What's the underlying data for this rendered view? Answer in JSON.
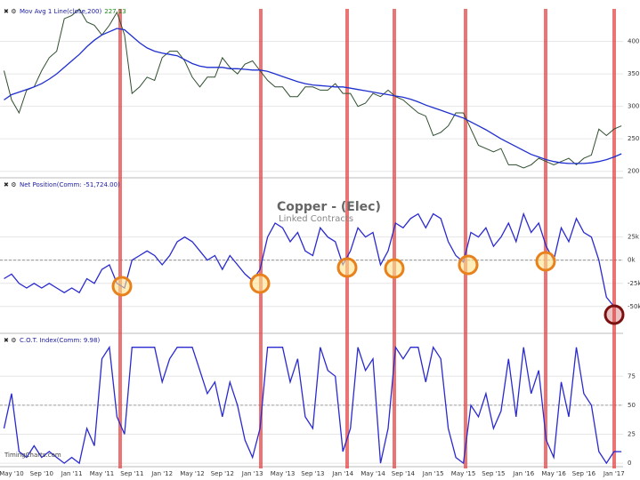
{
  "watermark": "TimingCharts.com",
  "chart_data": [
    {
      "type": "line",
      "legend": "Mov Avg 1 Line(close,200)",
      "legend_value": "227.13",
      "series": [
        {
          "name": "Copper",
          "color": "#2f4f2f",
          "values": [
            355,
            310,
            290,
            325,
            330,
            355,
            375,
            385,
            435,
            440,
            450,
            430,
            425,
            410,
            425,
            445,
            410,
            320,
            330,
            345,
            340,
            375,
            385,
            385,
            370,
            345,
            330,
            345,
            345,
            375,
            360,
            350,
            365,
            370,
            355,
            340,
            330,
            330,
            315,
            315,
            330,
            330,
            325,
            325,
            335,
            320,
            320,
            300,
            305,
            320,
            315,
            325,
            315,
            310,
            300,
            290,
            285,
            255,
            260,
            270,
            290,
            290,
            265,
            240,
            235,
            230,
            235,
            210,
            210,
            205,
            210,
            220,
            215,
            210,
            215,
            220,
            210,
            220,
            225,
            265,
            255,
            265,
            270
          ]
        },
        {
          "name": "Mov Avg",
          "color": "#1f2fcf",
          "values": [
            310,
            318,
            322,
            326,
            330,
            335,
            342,
            350,
            360,
            370,
            380,
            392,
            402,
            410,
            415,
            420,
            418,
            408,
            398,
            390,
            385,
            382,
            380,
            378,
            372,
            366,
            362,
            360,
            360,
            360,
            358,
            358,
            357,
            356,
            356,
            354,
            350,
            346,
            342,
            338,
            335,
            333,
            332,
            331,
            330,
            330,
            328,
            326,
            324,
            322,
            320,
            318,
            316,
            314,
            311,
            307,
            302,
            298,
            294,
            290,
            286,
            282,
            276,
            270,
            264,
            257,
            250,
            244,
            238,
            232,
            226,
            222,
            218,
            215,
            213,
            212,
            212,
            212,
            213,
            215,
            218,
            222,
            227
          ]
        }
      ],
      "ylim": [
        190,
        457
      ],
      "yticks": [
        200,
        250,
        300,
        350,
        400
      ],
      "grid": true
    },
    {
      "type": "line",
      "title": "Copper - (Elec)",
      "subtitle": "Linked Contracts",
      "legend": "Net Position(Comm: -51,724.00)",
      "series": [
        {
          "name": "Net Position",
          "color": "#2a2ad0",
          "values": [
            -20000,
            -15000,
            -25000,
            -30000,
            -25000,
            -30000,
            -25000,
            -30000,
            -35000,
            -30000,
            -35000,
            -20000,
            -25000,
            -10000,
            -5000,
            -25000,
            -30000,
            0,
            5000,
            10000,
            5000,
            -5000,
            5000,
            20000,
            25000,
            20000,
            10000,
            0,
            5000,
            -10000,
            5000,
            -5000,
            -15000,
            -22000,
            -10000,
            25000,
            40000,
            35000,
            20000,
            30000,
            10000,
            5000,
            35000,
            25000,
            20000,
            -5000,
            10000,
            35000,
            25000,
            30000,
            -5000,
            10000,
            40000,
            35000,
            45000,
            50000,
            35000,
            50000,
            45000,
            20000,
            5000,
            -2000,
            30000,
            25000,
            35000,
            15000,
            25000,
            40000,
            20000,
            50000,
            30000,
            40000,
            15000,
            0,
            35000,
            20000,
            45000,
            30000,
            25000,
            0,
            -40000,
            -50000,
            -51724
          ]
        }
      ],
      "ylim": [
        -79000,
        89000
      ],
      "yticks": [
        {
          "value": 25000,
          "label": "25k"
        },
        {
          "value": 0,
          "label": "0k"
        },
        {
          "value": -25000,
          "label": "-25k"
        },
        {
          "value": -50000,
          "label": "-50k"
        }
      ],
      "reference_line": 0,
      "grid": true
    },
    {
      "type": "line",
      "legend": "C.O.T. Index(Comm: 9.98)",
      "categories": [
        null,
        "May '10",
        null,
        null,
        null,
        "Sep '10",
        null,
        null,
        null,
        "Jan '11",
        null,
        null,
        null,
        "May '11",
        null,
        null,
        null,
        "Sep '11",
        null,
        null,
        null,
        "Jan '12",
        null,
        null,
        null,
        "May '12",
        null,
        null,
        null,
        "Sep '12",
        null,
        null,
        null,
        "Jan '13",
        null,
        null,
        null,
        "May '13",
        null,
        null,
        null,
        "Sep '13",
        null,
        null,
        null,
        "Jan '14",
        null,
        null,
        null,
        "May '14",
        null,
        null,
        null,
        "Sep '14",
        null,
        null,
        null,
        "Jan '15",
        null,
        null,
        null,
        "May '15",
        null,
        null,
        null,
        "Sep '15",
        null,
        null,
        null,
        "Jan '16",
        null,
        null,
        null,
        "May '16",
        null,
        null,
        null,
        "Sep '16",
        null,
        null,
        null,
        "Jan '17",
        null
      ],
      "series": [
        {
          "name": "C.O.T. Index",
          "color": "#2a2ad0",
          "values": [
            30,
            60,
            10,
            5,
            15,
            5,
            10,
            5,
            0,
            5,
            0,
            30,
            15,
            90,
            100,
            40,
            25,
            100,
            100,
            100,
            100,
            70,
            90,
            100,
            100,
            100,
            80,
            60,
            70,
            40,
            70,
            50,
            20,
            5,
            30,
            100,
            100,
            100,
            70,
            90,
            40,
            30,
            100,
            80,
            75,
            10,
            30,
            100,
            80,
            90,
            0,
            30,
            100,
            90,
            100,
            100,
            70,
            100,
            90,
            30,
            5,
            0,
            50,
            40,
            60,
            30,
            45,
            90,
            40,
            100,
            60,
            80,
            20,
            5,
            70,
            40,
            100,
            60,
            50,
            10,
            0,
            10,
            9.98
          ]
        }
      ],
      "ylim": [
        -3,
        112
      ],
      "yticks": [
        75,
        50,
        25,
        0
      ],
      "reference_line": 50,
      "grid": true
    }
  ]
}
